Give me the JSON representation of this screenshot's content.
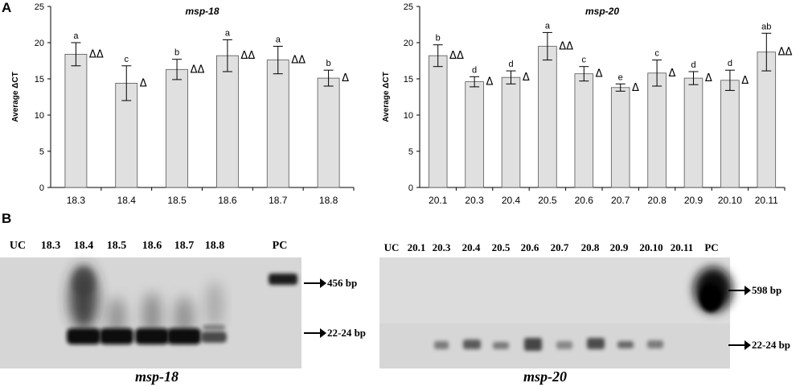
{
  "panel_a": {
    "letter": "A"
  },
  "panel_b": {
    "letter": "B"
  },
  "chart_data": [
    {
      "type": "bar",
      "title": "msp-18",
      "ylabel": "Average ΔCT",
      "xlabel": "",
      "ylim": [
        0,
        25
      ],
      "yticks": [
        0,
        5,
        10,
        15,
        20,
        25
      ],
      "grid": false,
      "categories": [
        "18.3",
        "18.4",
        "18.5",
        "18.6",
        "18.7",
        "18.8"
      ],
      "values": [
        18.4,
        14.4,
        16.3,
        18.2,
        17.6,
        15.1
      ],
      "errors": [
        1.6,
        2.4,
        1.4,
        2.2,
        1.9,
        1.1
      ],
      "group_letters": [
        "a",
        "c",
        "b",
        "a",
        "a",
        "b"
      ],
      "deltas": [
        "ΔΔ",
        "Δ",
        "ΔΔ",
        "ΔΔ",
        "ΔΔ",
        "Δ"
      ],
      "bar_color": "#e0e0e0"
    },
    {
      "type": "bar",
      "title": "msp-20",
      "ylabel": "Average ΔCT",
      "xlabel": "",
      "ylim": [
        0,
        25
      ],
      "yticks": [
        0,
        5,
        10,
        15,
        20,
        25
      ],
      "grid": false,
      "categories": [
        "20.1",
        "20.3",
        "20.4",
        "20.5",
        "20.6",
        "20.7",
        "20.8",
        "20.9",
        "20.10",
        "20.11"
      ],
      "values": [
        18.2,
        14.6,
        15.2,
        19.5,
        15.7,
        13.8,
        15.8,
        15.1,
        14.8,
        18.7
      ],
      "errors": [
        1.5,
        0.7,
        0.9,
        1.9,
        1.0,
        0.5,
        1.8,
        0.9,
        1.4,
        2.6
      ],
      "group_letters": [
        "b",
        "d",
        "d",
        "a",
        "c",
        "e",
        "c",
        "d",
        "d",
        "ab"
      ],
      "deltas": [
        "ΔΔ",
        "Δ",
        "Δ",
        "ΔΔ",
        "Δ",
        "Δ",
        "Δ",
        "Δ",
        "Δ",
        "ΔΔ"
      ],
      "bar_color": "#e0e0e0"
    }
  ],
  "gels": [
    {
      "caption": "msp-18",
      "lanes": [
        "UC",
        "18.3",
        "18.4",
        "18.5",
        "18.6",
        "18.7",
        "18.8",
        "PC"
      ],
      "markers": [
        "456 bp",
        "22-24 bp"
      ]
    },
    {
      "caption": "msp-20",
      "lanes": [
        "UC",
        "20.1",
        "20.3",
        "20.4",
        "20.5",
        "20.6",
        "20.7",
        "20.8",
        "20.9",
        "20.10",
        "20.11",
        "PC"
      ],
      "markers": [
        "598 bp",
        "22-24 bp"
      ]
    }
  ]
}
